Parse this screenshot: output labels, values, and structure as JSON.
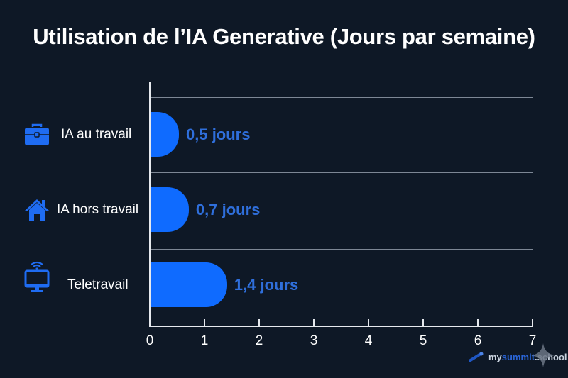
{
  "title": "Utilisation de l’IA Generative (Jours par semaine)",
  "colors": {
    "background": "#0e1826",
    "bar": "#0f6bff",
    "value_label": "#2f6fdc",
    "icon": "#1f6cf2",
    "axis": "#e6e9ee",
    "grid": "#7d8795"
  },
  "categories": [
    {
      "label": "IA au travail",
      "icon": "briefcase-icon",
      "value_label": "0,5 jours"
    },
    {
      "label": "IA hors travail",
      "icon": "house-icon",
      "value_label": "0,7 jours"
    },
    {
      "label": "Teletravail",
      "icon": "monitor-wifi-icon",
      "value_label": "1,4 jours"
    }
  ],
  "x_ticks": [
    "0",
    "1",
    "2",
    "3",
    "4",
    "5",
    "6",
    "7"
  ],
  "branding": {
    "my": "my",
    "summit": "summit",
    "school": ".school"
  },
  "chart_data": {
    "type": "bar",
    "orientation": "horizontal",
    "title": "Utilisation de l’IA Generative (Jours par semaine)",
    "categories": [
      "IA au travail",
      "IA hors travail",
      "Teletravail"
    ],
    "values": [
      0.5,
      0.7,
      1.4
    ],
    "data_labels": [
      "0,5 jours",
      "0,7 jours",
      "1,4 jours"
    ],
    "xlabel": "",
    "ylabel": "",
    "xlim": [
      0,
      7
    ],
    "x_ticks": [
      0,
      1,
      2,
      3,
      4,
      5,
      6,
      7
    ],
    "grid": "horizontal separators between categories",
    "legend": "none"
  }
}
